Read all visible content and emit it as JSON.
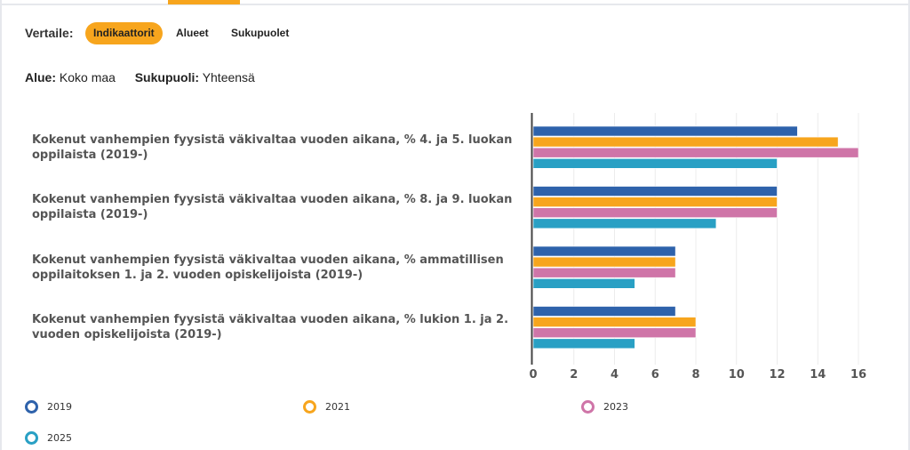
{
  "controls": {
    "compare_label": "Vertaile:",
    "options": [
      "Indikaattorit",
      "Alueet",
      "Sukupuolet"
    ],
    "active": 0
  },
  "filters": {
    "area_label": "Alue:",
    "area_value": "Koko maa",
    "gender_label": "Sukupuoli:",
    "gender_value": "Yhteensä"
  },
  "chart_data": {
    "type": "bar",
    "orientation": "horizontal",
    "categories": [
      "Kokenut vanhempien fyysistä väkivaltaa vuoden aikana, % 4. ja 5. luokan oppilaista (2019-)",
      "Kokenut vanhempien fyysistä väkivaltaa vuoden aikana, % 8. ja 9. luokan oppilaista (2019-)",
      "Kokenut vanhempien fyysistä väkivaltaa vuoden aikana, % ammatillisen oppilaitoksen 1. ja 2. vuoden opiskelijoista (2019-)",
      "Kokenut vanhempien fyysistä väkivaltaa vuoden aikana, % lukion 1. ja 2. vuoden opiskelijoista (2019-)"
    ],
    "series": [
      {
        "name": "2019",
        "color": "#2e62ab",
        "values": [
          13,
          12,
          7,
          7
        ]
      },
      {
        "name": "2021",
        "color": "#f7a51d",
        "values": [
          15,
          12,
          7,
          8
        ]
      },
      {
        "name": "2023",
        "color": "#cf75a8",
        "values": [
          16,
          12,
          7,
          8
        ]
      },
      {
        "name": "2025",
        "color": "#29a0c4",
        "values": [
          12,
          9,
          5,
          5
        ]
      }
    ],
    "xlim": [
      0,
      16
    ],
    "xticks": [
      "0",
      "2",
      "4",
      "6",
      "8",
      "10",
      "12",
      "14",
      "16"
    ],
    "grid": true,
    "legend": "bottom"
  }
}
